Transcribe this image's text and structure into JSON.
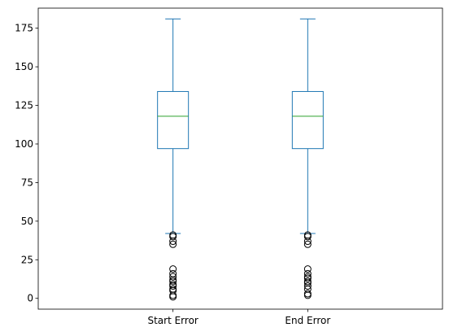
{
  "chart_data": {
    "type": "box",
    "title": "",
    "xlabel": "",
    "ylabel": "",
    "ylim": [
      -7,
      188
    ],
    "yticks": [
      0,
      25,
      50,
      75,
      100,
      125,
      150,
      175
    ],
    "grid": false,
    "colors": {
      "box": "#1f77b4",
      "median": "#2ca02c",
      "flier": "#000000",
      "axis": "#000000"
    },
    "categories": [
      "Start Error",
      "End Error"
    ],
    "series": [
      {
        "category": "Start Error",
        "whisker_low": 42,
        "q1": 97,
        "median": 118,
        "q3": 134,
        "whisker_high": 181,
        "outliers": [
          41,
          40,
          37,
          35,
          19,
          16,
          14,
          12,
          11,
          9,
          8,
          6,
          5,
          2,
          1
        ]
      },
      {
        "category": "End Error",
        "whisker_low": 42,
        "q1": 97,
        "median": 118,
        "q3": 134,
        "whisker_high": 181,
        "outliers": [
          41,
          40,
          37,
          35,
          19,
          16,
          14,
          13,
          11,
          10,
          8,
          6,
          3,
          2
        ]
      }
    ]
  }
}
